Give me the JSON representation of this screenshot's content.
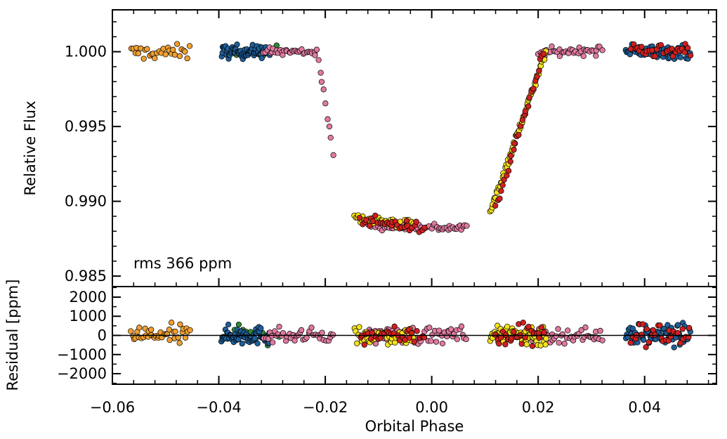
{
  "chart_data": [
    {
      "type": "scatter",
      "panel": "top",
      "ylabel": "Relative Flux",
      "xlim": [
        -0.06,
        0.0535
      ],
      "ylim": [
        0.9843,
        1.0028
      ],
      "yticks": [
        1.0,
        0.995,
        0.99,
        0.985
      ],
      "ytick_labels": [
        "1.000",
        "0.995",
        "0.990",
        "0.985"
      ],
      "annotation": "rms 366 ppm",
      "series": [
        {
          "name": "orange",
          "color": "#F0A030",
          "segments": [
            [
              -0.0565,
              -0.0455,
              0.99995,
              0.99995,
              0.00035,
              30
            ]
          ]
        },
        {
          "name": "green",
          "color": "#2E8B3A",
          "segments": [
            [
              -0.038,
              -0.029,
              1.0001,
              1.0001,
              0.0003,
              12
            ]
          ]
        },
        {
          "name": "blue",
          "color": "#1F5F9A",
          "segments": [
            [
              -0.0395,
              -0.0305,
              1.0,
              1.0,
              0.0003,
              70
            ],
            [
              0.0365,
              0.0485,
              1.0,
              1.0,
              0.0003,
              65
            ]
          ]
        },
        {
          "name": "pink",
          "color": "#E07AA0",
          "segments": [
            [
              -0.0315,
              -0.0215,
              1.0,
              1.0,
              0.0002,
              35
            ],
            [
              -0.0213,
              -0.0185,
              0.9995,
              0.9933,
              0.0002,
              9
            ],
            [
              -0.012,
              0.0065,
              0.9884,
              0.9882,
              0.0002,
              60
            ],
            [
              0.02,
              0.032,
              0.99995,
              1.0001,
              0.0002,
              38
            ]
          ]
        },
        {
          "name": "yellow",
          "color": "#F5E21A",
          "segments": [
            [
              -0.0145,
              -0.0035,
              0.9889,
              0.9884,
              0.00025,
              45
            ],
            [
              0.011,
              0.0215,
              0.9893,
              1.0,
              0.0002,
              65
            ]
          ]
        },
        {
          "name": "red",
          "color": "#D02020",
          "segments": [
            [
              -0.0135,
              -0.0015,
              0.9888,
              0.9882,
              0.00025,
              30
            ],
            [
              0.012,
              0.021,
              0.9895,
              1.0,
              0.0002,
              28
            ],
            [
              0.0375,
              0.0485,
              1.0,
              1.0,
              0.0003,
              30
            ]
          ]
        }
      ]
    },
    {
      "type": "scatter",
      "panel": "bottom",
      "xlabel": "Orbital Phase",
      "ylabel": "Residual [ppm]",
      "xlim": [
        -0.06,
        0.0535
      ],
      "ylim": [
        -2550,
        2550
      ],
      "yticks": [
        2000,
        1000,
        0,
        -1000,
        -2000
      ],
      "ytick_labels": [
        "2000",
        "1000",
        "0",
        "−1000",
        "−2000"
      ],
      "xticks": [
        -0.06,
        -0.04,
        -0.02,
        0.0,
        0.02,
        0.04
      ],
      "xtick_labels": [
        "−0.06",
        "−0.04",
        "−0.02",
        "0.00",
        "0.02",
        "0.04"
      ],
      "zero_line": 0,
      "series": [
        {
          "name": "orange",
          "color": "#F0A030",
          "segments": [
            [
              -0.0565,
              -0.0455,
              0,
              0,
              380,
              40
            ]
          ]
        },
        {
          "name": "green",
          "color": "#2E8B3A",
          "segments": [
            [
              -0.038,
              -0.029,
              100,
              100,
              420,
              12
            ]
          ]
        },
        {
          "name": "blue",
          "color": "#1F5F9A",
          "segments": [
            [
              -0.0395,
              -0.0305,
              0,
              0,
              320,
              70
            ],
            [
              0.0365,
              0.0485,
              0,
              0,
              380,
              65
            ]
          ]
        },
        {
          "name": "pink",
          "color": "#E07AA0",
          "segments": [
            [
              -0.0315,
              -0.0185,
              0,
              0,
              260,
              40
            ],
            [
              -0.012,
              0.0065,
              0,
              0,
              320,
              60
            ],
            [
              0.0185,
              0.032,
              0,
              0,
              260,
              45
            ]
          ]
        },
        {
          "name": "yellow",
          "color": "#F5E21A",
          "segments": [
            [
              -0.0145,
              -0.0035,
              0,
              0,
              340,
              45
            ],
            [
              0.011,
              0.0215,
              0,
              0,
              420,
              65
            ]
          ]
        },
        {
          "name": "red",
          "color": "#D02020",
          "segments": [
            [
              -0.0135,
              -0.0015,
              0,
              0,
              340,
              30
            ],
            [
              0.012,
              0.021,
              50,
              50,
              550,
              28
            ],
            [
              0.0375,
              0.0485,
              50,
              50,
              450,
              30
            ]
          ]
        }
      ]
    }
  ]
}
